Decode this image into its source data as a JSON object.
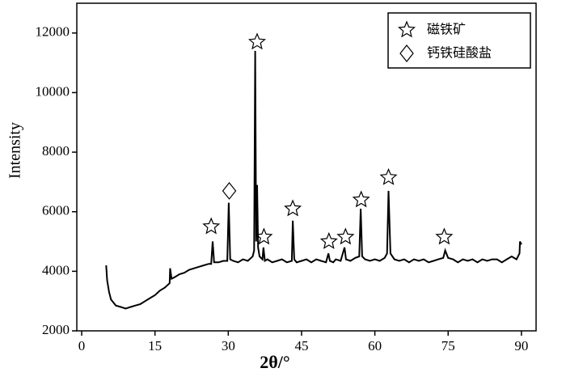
{
  "chart_data": {
    "type": "line",
    "x_label": "2θ/°",
    "y_label": "Intensity",
    "xlim": [
      -1,
      93
    ],
    "ylim": [
      2000,
      13000
    ],
    "xticks": [
      0,
      15,
      30,
      45,
      60,
      75,
      90
    ],
    "yticks": [
      2000,
      4000,
      6000,
      8000,
      10000,
      12000
    ],
    "x": [
      5,
      5.2,
      5.6,
      6,
      6.5,
      7,
      8,
      9,
      10,
      11,
      12,
      13,
      14,
      15,
      16,
      17,
      18,
      18.1,
      18.4,
      19,
      20,
      21,
      22,
      23,
      24,
      25,
      26,
      26.5,
      26.8,
      27.1,
      28,
      29,
      29.8,
      30.1,
      30.4,
      31,
      32,
      33,
      34,
      35,
      35.3,
      35.5,
      35.7,
      35.9,
      36.1,
      36.4,
      37,
      37.2,
      37.5,
      38,
      39,
      40,
      41,
      42,
      43,
      43.2,
      43.5,
      44,
      45,
      46,
      47,
      48,
      49,
      50,
      50.5,
      50.8,
      51.5,
      52,
      53,
      53.8,
      54.1,
      55,
      56,
      56.8,
      57.1,
      57.4,
      58,
      59,
      60,
      61,
      62,
      62.5,
      62.8,
      63.2,
      64,
      65,
      66,
      67,
      68,
      69,
      70,
      71,
      72,
      73,
      74,
      74.4,
      75,
      76,
      77,
      78,
      79,
      80,
      81,
      82,
      83,
      84,
      85,
      86,
      87,
      88,
      89,
      89.6,
      89.7,
      90
    ],
    "series": [
      {
        "color": "#000000",
        "values": [
          4200,
          3700,
          3300,
          3050,
          2950,
          2850,
          2800,
          2750,
          2800,
          2850,
          2900,
          3000,
          3100,
          3200,
          3350,
          3450,
          3600,
          4100,
          3750,
          3800,
          3900,
          3950,
          4050,
          4100,
          4150,
          4200,
          4250,
          4250,
          5000,
          4300,
          4300,
          4350,
          4350,
          6300,
          4400,
          4350,
          4300,
          4400,
          4350,
          4500,
          4700,
          11400,
          5000,
          6900,
          4800,
          4500,
          4400,
          4800,
          4350,
          4400,
          4300,
          4350,
          4400,
          4300,
          4350,
          5700,
          4400,
          4300,
          4350,
          4400,
          4300,
          4400,
          4350,
          4300,
          4600,
          4350,
          4300,
          4400,
          4350,
          4800,
          4400,
          4350,
          4450,
          4500,
          6100,
          4500,
          4400,
          4350,
          4400,
          4350,
          4450,
          4600,
          6700,
          4600,
          4400,
          4350,
          4400,
          4300,
          4400,
          4350,
          4400,
          4300,
          4350,
          4400,
          4450,
          4700,
          4450,
          4400,
          4300,
          4400,
          4350,
          4400,
          4300,
          4400,
          4350,
          4400,
          4400,
          4300,
          4400,
          4500,
          4400,
          4600,
          5000,
          4900
        ]
      }
    ],
    "markers": [
      {
        "name": "磁铁矿",
        "symbol": "star",
        "x": [
          26.5,
          35.9,
          37.3,
          43.2,
          50.6,
          54,
          57.2,
          62.8,
          74.2
        ],
        "y": [
          5500,
          11700,
          5150,
          6100,
          5000,
          5150,
          6400,
          7150,
          5150
        ]
      },
      {
        "name": "钙铁硅酸盐",
        "symbol": "diamond",
        "x": [
          30.2
        ],
        "y": [
          6700
        ]
      }
    ]
  }
}
